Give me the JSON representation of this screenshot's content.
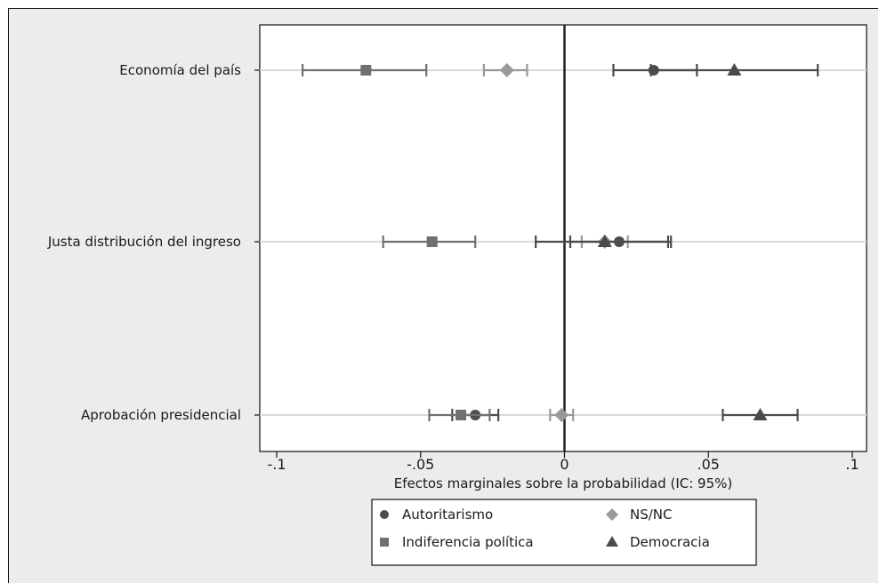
{
  "chart_data": {
    "type": "scatter",
    "subtype": "coefficient-plot-with-95ci",
    "xlabel": "Efectos marginales sobre la probabilidad (IC: 95%)",
    "ylabel": "",
    "xlim": [
      -0.1,
      0.1
    ],
    "x_ticks": [
      {
        "value": -0.1,
        "label": "-.1"
      },
      {
        "value": -0.05,
        "label": "-.05"
      },
      {
        "value": 0,
        "label": "0"
      },
      {
        "value": 0.05,
        "label": ".05"
      },
      {
        "value": 0.1,
        "label": ".1"
      }
    ],
    "categories": [
      "Economía del país",
      "Justa distribución del ingreso",
      "Aprobación presidencial"
    ],
    "grid": true,
    "reference_line": 0,
    "legend_position": "bottom",
    "series": [
      {
        "name": "Autoritarismo",
        "marker": "circle",
        "color": "#4d4d4d",
        "points": [
          {
            "category": "Economía del país",
            "estimate": 0.031,
            "ci": [
              0.03,
              0.046
            ]
          },
          {
            "category": "Justa distribución del ingreso",
            "estimate": 0.019,
            "ci": [
              0.002,
              0.037
            ]
          },
          {
            "category": "Aprobación presidencial",
            "estimate": -0.031,
            "ci": [
              -0.039,
              -0.023
            ]
          }
        ]
      },
      {
        "name": "NS/NC",
        "marker": "diamond",
        "color": "#999999",
        "points": [
          {
            "category": "Economía del país",
            "estimate": -0.02,
            "ci": [
              -0.028,
              -0.013
            ]
          },
          {
            "category": "Justa distribución del ingreso",
            "estimate": 0.014,
            "ci": [
              0.006,
              0.022
            ]
          },
          {
            "category": "Aprobación presidencial",
            "estimate": -0.001,
            "ci": [
              -0.005,
              0.003
            ]
          }
        ]
      },
      {
        "name": "Indiferencia política",
        "marker": "square",
        "color": "#707070",
        "points": [
          {
            "category": "Economía del país",
            "estimate": -0.069,
            "ci": [
              -0.091,
              -0.048
            ]
          },
          {
            "category": "Justa distribución del ingreso",
            "estimate": -0.046,
            "ci": [
              -0.063,
              -0.031
            ]
          },
          {
            "category": "Aprobación presidencial",
            "estimate": -0.036,
            "ci": [
              -0.047,
              -0.026
            ]
          }
        ]
      },
      {
        "name": "Democracia",
        "marker": "triangle",
        "color": "#4a4a4a",
        "points": [
          {
            "category": "Economía del país",
            "estimate": 0.059,
            "ci": [
              0.017,
              0.088
            ]
          },
          {
            "category": "Justa distribución del ingreso",
            "estimate": 0.014,
            "ci": [
              -0.01,
              0.036
            ]
          },
          {
            "category": "Aprobación presidencial",
            "estimate": 0.068,
            "ci": [
              0.055,
              0.081
            ]
          }
        ]
      }
    ],
    "legend_entries": [
      {
        "name": "Autoritarismo",
        "marker": "circle",
        "color": "#4d4d4d"
      },
      {
        "name": "NS/NC",
        "marker": "diamond",
        "color": "#999999"
      },
      {
        "name": "Indiferencia política",
        "marker": "square",
        "color": "#707070"
      },
      {
        "name": "Democracia",
        "marker": "triangle",
        "color": "#4a4a4a"
      }
    ]
  }
}
